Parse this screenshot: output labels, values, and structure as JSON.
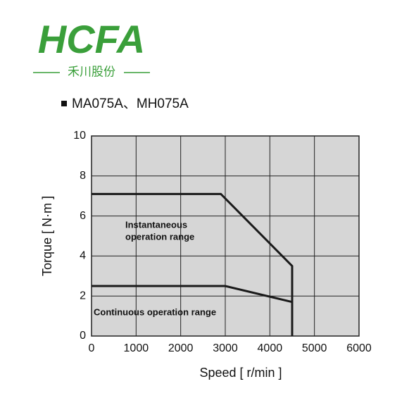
{
  "logo": {
    "name": "HCFA",
    "tagline": "禾川股份"
  },
  "chart_data": {
    "type": "line",
    "title": "MA075A、MH075A",
    "xlabel": "Speed [ r/min ]",
    "ylabel": "Torque [ N·m ]",
    "xlim": [
      0,
      6000
    ],
    "xticks": [
      0,
      1000,
      2000,
      3000,
      4000,
      5000,
      6000
    ],
    "ylim": [
      0,
      10
    ],
    "yticks": [
      0,
      2,
      4,
      6,
      8,
      10
    ],
    "grid": true,
    "series": [
      {
        "color": "#1a1a1a",
        "x": [
          0,
          2900,
          4500,
          4500
        ],
        "values": [
          7.1,
          7.1,
          3.5,
          0
        ]
      },
      {
        "color": "#1a1a1a",
        "x": [
          0,
          3000,
          4500
        ],
        "values": [
          2.5,
          2.5,
          1.7
        ]
      }
    ],
    "annotations": [
      [
        "Instantaneous",
        "operation range"
      ],
      [
        "Continuous operation range"
      ]
    ]
  }
}
